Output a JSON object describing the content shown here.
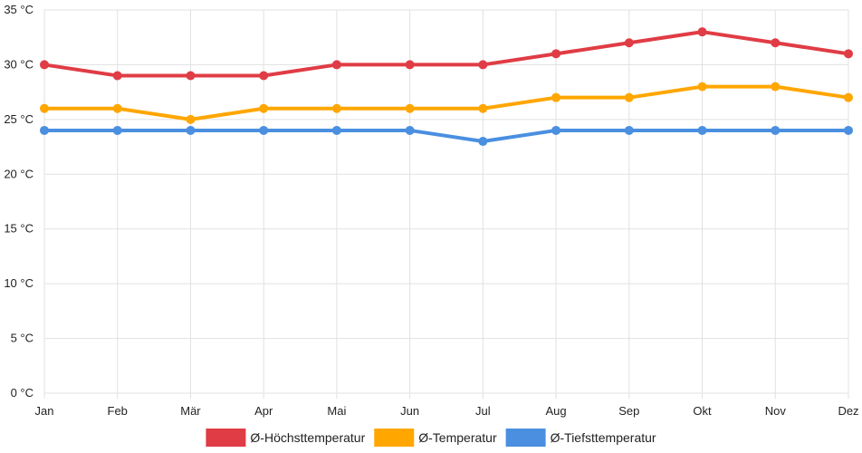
{
  "chart_data": {
    "type": "line",
    "categories": [
      "Jan",
      "Feb",
      "Mär",
      "Apr",
      "Mai",
      "Jun",
      "Jul",
      "Aug",
      "Sep",
      "Okt",
      "Nov",
      "Dez"
    ],
    "y_ticks": [
      "0 °C",
      "5 °C",
      "10 °C",
      "15 °C",
      "20 °C",
      "25 °C",
      "30 °C",
      "35 °C"
    ],
    "ylim": [
      0,
      35
    ],
    "grid": true,
    "legend_position": "bottom",
    "series": [
      {
        "name": "Ø-Höchsttemperatur",
        "color": "#e03c45",
        "values": [
          30,
          29,
          29,
          29,
          30,
          30,
          30,
          31,
          32,
          33,
          32,
          31
        ]
      },
      {
        "name": "Ø-Temperatur",
        "color": "#ffa600",
        "values": [
          26,
          26,
          25,
          26,
          26,
          26,
          26,
          27,
          27,
          28,
          28,
          27
        ]
      },
      {
        "name": "Ø-Tiefsttemperatur",
        "color": "#4a8fe0",
        "values": [
          24,
          24,
          24,
          24,
          24,
          24,
          23,
          24,
          24,
          24,
          24,
          24
        ]
      }
    ]
  }
}
